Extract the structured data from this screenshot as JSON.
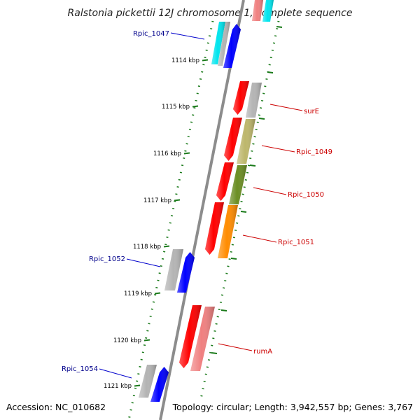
{
  "title": "Ralstonia pickettii 12J chromosome 1, complete sequence",
  "footer": {
    "accession": "Accession: NC_010682",
    "topology": "Topology: circular; Length: 3,942,557 bp; Genes: 3,767"
  },
  "ticks": [
    "1114 kbp",
    "1115 kbp",
    "1116 kbp",
    "1117 kbp",
    "1118 kbp",
    "1119 kbp",
    "1120 kbp",
    "1121 kbp"
  ],
  "left_labels": [
    "Rpic_1047",
    "Rpic_1052",
    "Rpic_1054"
  ],
  "right_labels": [
    "surE",
    "Rpic_1049",
    "Rpic_1050",
    "Rpic_1051",
    "rumA"
  ],
  "colors": {
    "left_label": "#00008b",
    "right_label": "#cc0000",
    "backbone": "#8c8c8c",
    "tick": "#1a7a1a",
    "red": "#ff0000",
    "grey": "#b4b4b4",
    "blue": "#0000ff",
    "cyan": "#00e5ee",
    "khaki": "#bdb76b",
    "olive": "#6b8e23",
    "orange": "#ff8c00",
    "pink": "#f08080"
  }
}
